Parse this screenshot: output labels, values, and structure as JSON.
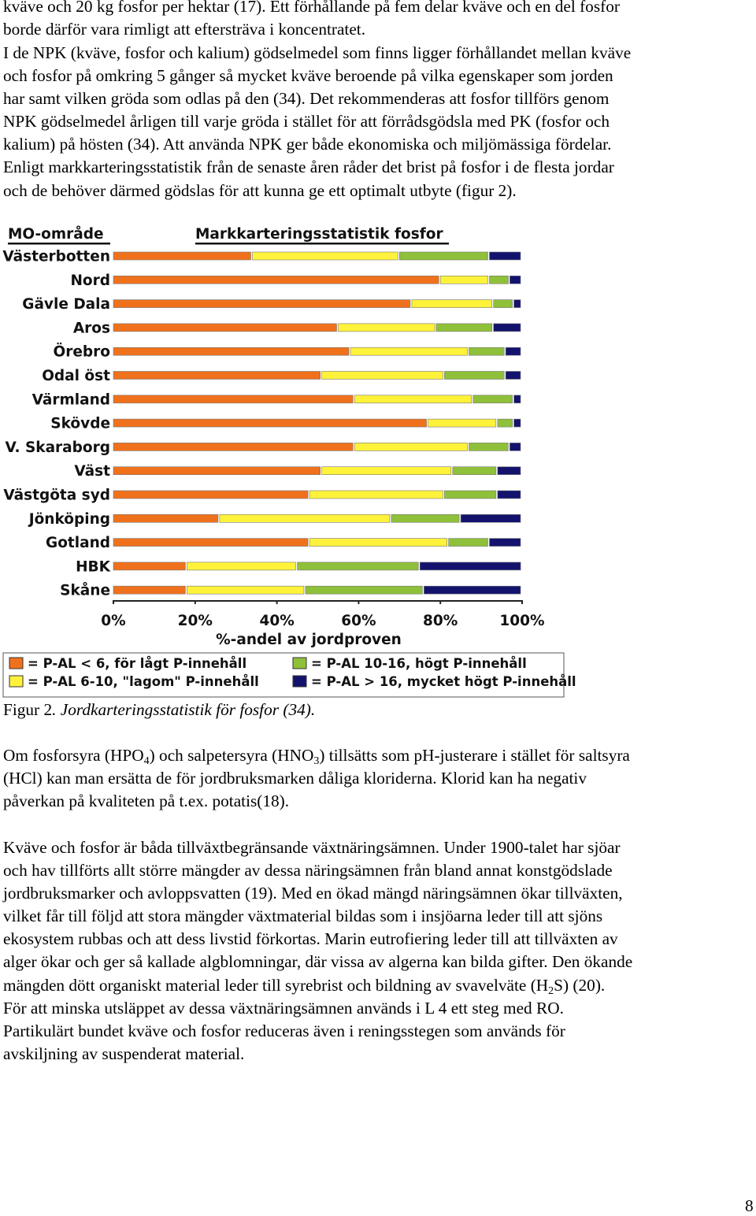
{
  "text": {
    "p1": [
      "kväve och 20 kg fosfor per hektar (17). Ett förhållande på fem delar kväve och en del fosfor",
      "borde därför vara rimligt att eftersträva i koncentratet."
    ],
    "p2": [
      "I de NPK (kväve, fosfor och kalium) gödselmedel som finns ligger förhållandet mellan kväve",
      "och fosfor på omkring 5 gånger så mycket kväve beroende på vilka egenskaper som jorden",
      "har samt vilken gröda som odlas på den (34). Det rekommenderas att fosfor tillförs genom",
      "NPK gödselmedel årligen till varje gröda i stället för att förrådsgödsla med PK (fosfor och",
      "kalium) på hösten (34). Att använda NPK ger både ekonomiska och miljömässiga fördelar.",
      "Enligt markkarteringsstatistik från de senaste åren råder det brist på fosfor i de flesta jordar",
      "och de behöver därmed gödslas för att kunna ge ett optimalt utbyte (figur 2)."
    ],
    "p3": {
      "l1_a": "Om fosforsyra (HPO",
      "l1_sub1": "4",
      "l1_b": ") och salpetersyra (HNO",
      "l1_sub2": "3",
      "l1_c": ") tillsätts som pH-justerare i stället för saltsyra",
      "l2": "(HCl) kan man ersätta de för jordbruksmarken dåliga kloriderna. Klorid kan ha negativ",
      "l3": "påverkan på kvaliteten på t.ex. potatis(18)."
    },
    "p4": {
      "lines": [
        "Kväve och fosfor är båda tillväxtbegränsande växtnäringsämnen. Under 1900-talet har sjöar",
        "och hav tillförts allt större mängder av dessa näringsämnen från bland annat konstgödslade",
        "jordbruksmarker och avloppsvatten (19). Med en ökad mängd näringsämnen ökar tillväxten,",
        "vilket får till följd att stora mängder växtmaterial bildas som i insjöarna leder till att sjöns",
        "ekosystem rubbas och att dess livstid förkortas. Marin eutrofiering leder till att tillväxten av",
        "alger ökar och ger så kallade algblomningar, där vissa av algerna kan bilda gifter. Den ökande"
      ],
      "l7_a": "mängden dött organiskt material leder till syrebrist och bildning av svavelväte (H",
      "l7_sub": "2",
      "l7_b": "S) (20).",
      "lines_after": [
        "För att minska utsläppet av dessa växtnäringsämnen används i L 4 ett steg med RO.",
        "Partikulärt bundet kväve och fosfor reduceras även i reningsstegen som används för",
        "avskiljning av suspenderat material."
      ]
    },
    "caption_bold": "Figur 2",
    "caption_italic": ". Jordkarteringsstatistik för fosfor (34).",
    "page_number": "8"
  },
  "chart_data": {
    "type": "bar",
    "orientation": "horizontal-stacked-100",
    "title": "Markkarteringsstatistik fosfor",
    "category_header": "MO-område",
    "xlabel": "%-andel av jordproven",
    "xlim": [
      0,
      100
    ],
    "xticks": [
      "0%",
      "20%",
      "40%",
      "60%",
      "80%",
      "100%"
    ],
    "categories": [
      "Västerbotten",
      "Nord",
      "Gävle Dala",
      "Aros",
      "Örebro",
      "Odal öst",
      "Värmland",
      "Skövde",
      "V. Skaraborg",
      "Väst",
      "Västgöta syd",
      "Jönköping",
      "Gotland",
      "HBK",
      "Skåne"
    ],
    "series": [
      {
        "name": "= P-AL < 6, för lågt P-innehåll",
        "color": "#f0711c",
        "values": [
          34,
          80,
          73,
          55,
          58,
          51,
          59,
          77,
          59,
          51,
          48,
          26,
          48,
          18,
          18
        ]
      },
      {
        "name": "= P-AL 6-10, \"lagom\" P-innehåll",
        "color": "#fff23a",
        "values": [
          36,
          12,
          20,
          24,
          29,
          30,
          29,
          17,
          28,
          32,
          33,
          42,
          34,
          27,
          29
        ]
      },
      {
        "name": "= P-AL 10-16, högt P-innehåll",
        "color": "#8fc03a",
        "values": [
          22,
          5,
          5,
          14,
          9,
          15,
          10,
          4,
          10,
          11,
          13,
          17,
          10,
          30,
          29
        ]
      },
      {
        "name": "= P-AL > 16, mycket högt P-innehåll",
        "color": "#13136e",
        "values": [
          8,
          3,
          2,
          7,
          4,
          4,
          2,
          2,
          3,
          6,
          6,
          15,
          8,
          25,
          24
        ]
      }
    ],
    "legend_position": "bottom",
    "grid": false
  }
}
